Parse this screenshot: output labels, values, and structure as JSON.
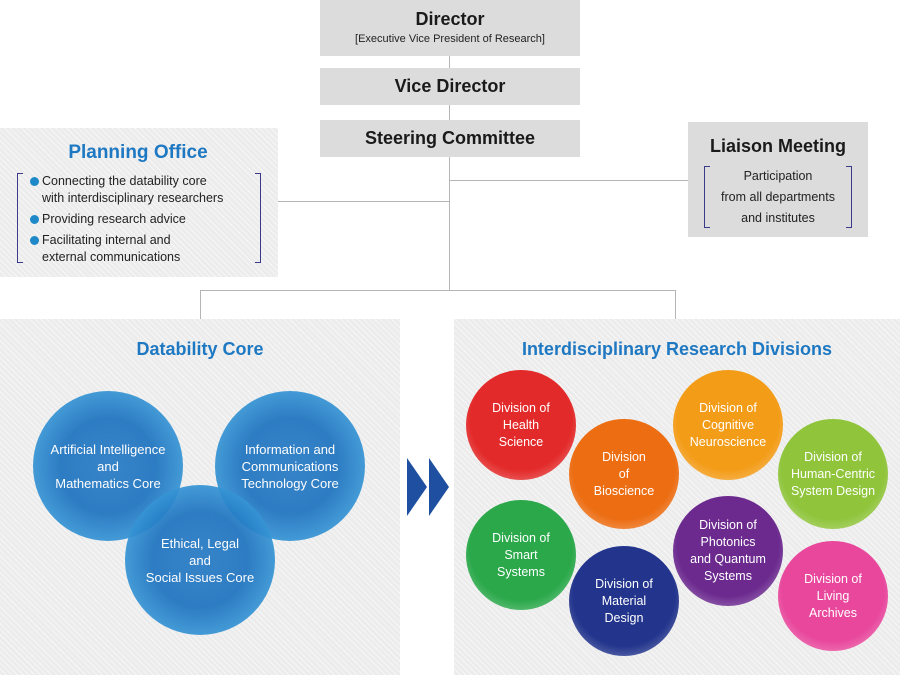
{
  "director": {
    "title": "Director",
    "subtitle": "[Executive Vice President of Research]"
  },
  "vice_director": {
    "title": "Vice Director"
  },
  "steering": {
    "title": "Steering Committee"
  },
  "planning": {
    "title": "Planning Office",
    "items": [
      "Connecting the datability core\nwith interdisciplinary researchers",
      "Providing research advice",
      "Facilitating internal and\nexternal communications"
    ]
  },
  "liaison": {
    "title": "Liaison Meeting",
    "body": "Participation\nfrom all departments\nand institutes"
  },
  "datability": {
    "title": "Datability Core",
    "circles": [
      "Artificial Intelligence\nand\nMathematics Core",
      "Information and\nCommunications\nTechnology Core",
      "Ethical, Legal\nand\nSocial Issues Core"
    ]
  },
  "interdisciplinary": {
    "title": "Interdisciplinary Research Divisions",
    "divisions": [
      {
        "label": "Division of\nHealth\nScience",
        "color": "#e32a2a"
      },
      {
        "label": "Division\nof\nBioscience",
        "color": "#ec6d12"
      },
      {
        "label": "Division of\nCognitive\nNeuroscience",
        "color": "#f39c18"
      },
      {
        "label": "Division of\nHuman-Centric\nSystem Design",
        "color": "#8fc43b"
      },
      {
        "label": "Division of\nSmart\nSystems",
        "color": "#2aa84a"
      },
      {
        "label": "Division of\nMaterial\nDesign",
        "color": "#22348c"
      },
      {
        "label": "Division of\nPhotonics\nand Quantum\nSystems",
        "color": "#6c2a8f"
      },
      {
        "label": "Division of\nLiving\nArchives",
        "color": "#e8479c"
      }
    ]
  },
  "colors": {
    "accent_blue": "#1e78c2",
    "box_grey": "#dcdcdc",
    "bracket": "#3a3a8a",
    "arrow": "#1f4fa0"
  }
}
